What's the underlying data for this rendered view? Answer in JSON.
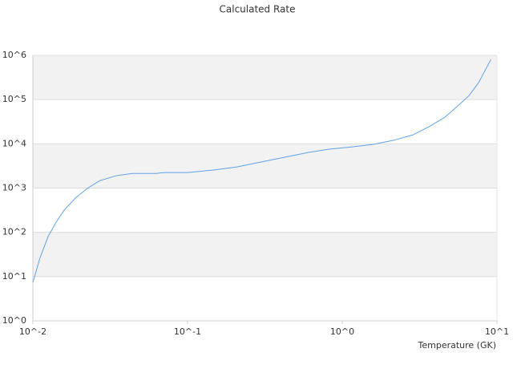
{
  "chart_data": {
    "type": "line",
    "title": "Calculated Rate",
    "x_label": "Temperature (GK)",
    "xscale": "log",
    "yscale": "log",
    "grid": true,
    "bands": true,
    "xlim": [
      0.01,
      10
    ],
    "ylim": [
      1,
      1000000
    ],
    "xticks": [
      {
        "value": 0.01,
        "label": "10^-2"
      },
      {
        "value": 0.1,
        "label": "10^-1"
      },
      {
        "value": 1,
        "label": "10^0"
      },
      {
        "value": 10,
        "label": "10^1"
      }
    ],
    "yticks": [
      {
        "value": 1,
        "label": "10^0"
      },
      {
        "value": 10,
        "label": "10^1"
      },
      {
        "value": 100,
        "label": "10^2"
      },
      {
        "value": 1000,
        "label": "10^3"
      },
      {
        "value": 10000,
        "label": "10^4"
      },
      {
        "value": 100000,
        "label": "10^5"
      },
      {
        "value": 1000000,
        "label": "10^6"
      }
    ],
    "x": [
      0.01,
      0.0111,
      0.01254,
      0.01413,
      0.01592,
      0.01903,
      0.0228,
      0.0272,
      0.0346,
      0.0439,
      0.0627,
      0.0706,
      0.1,
      0.1448,
      0.2085,
      0.2628,
      0.3327,
      0.447,
      0.6,
      0.811,
      1.16,
      1.57,
      2.12,
      2.86,
      3.62,
      4.6,
      5.5,
      6.6,
      7.6,
      9.13
    ],
    "series": [
      {
        "color": "#5fa2e6",
        "values": [
          7.4,
          25.9,
          80,
          169,
          316,
          617,
          1016,
          1479,
          1905,
          2140,
          2140,
          2245,
          2245,
          2547,
          3006,
          3556,
          4199,
          5180,
          6365,
          7530,
          8530,
          9680,
          11900,
          15950,
          24200,
          39800,
          68700,
          123000,
          240000,
          805000
        ]
      }
    ]
  }
}
